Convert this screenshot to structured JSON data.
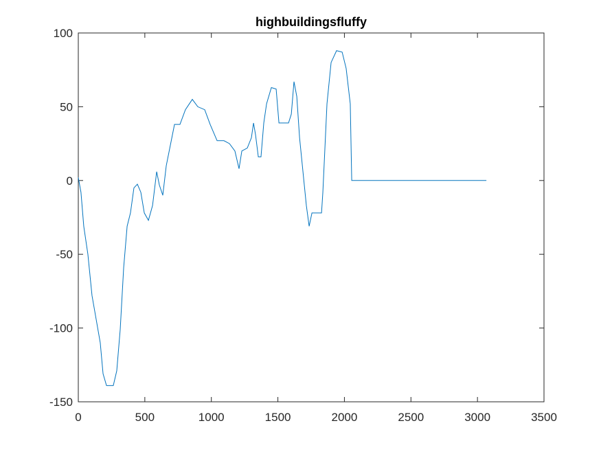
{
  "chart_data": {
    "type": "line",
    "title": "highbuildingsfluffy",
    "color": "#0072bd",
    "x": [
      0,
      20,
      41,
      72,
      103,
      134,
      165,
      186,
      212,
      263,
      289,
      315,
      341,
      367,
      392,
      418,
      444,
      470,
      496,
      527,
      558,
      589,
      609,
      635,
      661,
      692,
      723,
      764,
      805,
      857,
      898,
      950,
      991,
      1043,
      1094,
      1136,
      1177,
      1208,
      1229,
      1270,
      1301,
      1317,
      1332,
      1353,
      1373,
      1394,
      1415,
      1451,
      1487,
      1508,
      1580,
      1601,
      1621,
      1642,
      1663,
      1694,
      1714,
      1735,
      1756,
      1828,
      1838,
      1869,
      1900,
      1941,
      1983,
      2013,
      2044,
      2055,
      3067
    ],
    "values": [
      2,
      -8,
      -31,
      -50,
      -78,
      -94,
      -110,
      -131,
      -139,
      -139,
      -129,
      -101,
      -59,
      -31,
      -22,
      -5,
      -2.5,
      -8,
      -22,
      -27,
      -17,
      6,
      -3,
      -10,
      10,
      24,
      38,
      38,
      48,
      55,
      50,
      48,
      38,
      27,
      27,
      25,
      20,
      8,
      20,
      22,
      29,
      39,
      31,
      16,
      16,
      39,
      52,
      63,
      62,
      39,
      39,
      45,
      67,
      57,
      29,
      1,
      -17,
      -31,
      -22,
      -22,
      -8,
      52,
      80,
      88,
      87,
      76,
      52,
      0,
      0
    ],
    "xlim": [
      0,
      3500
    ],
    "xticks": [
      0,
      500,
      1000,
      1500,
      2000,
      2500,
      3000,
      3500
    ],
    "ylim": [
      -150,
      100
    ],
    "yticks": [
      -150,
      -100,
      -50,
      0,
      50,
      100
    ]
  }
}
